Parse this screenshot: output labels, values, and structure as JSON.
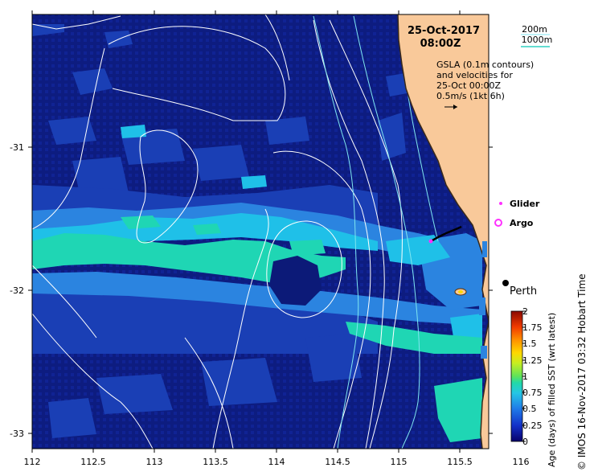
{
  "map": {
    "title_date": "25-Oct-2017",
    "title_time": "08:00Z",
    "bathymetry_legend": [
      "200m",
      "1000m"
    ],
    "gsla_note": [
      "GSLA (0.1m contours)",
      "and velocities for",
      "25-Oct 00:00Z",
      "0.5m/s (1kt 6h)"
    ],
    "legend_glider": "Glider",
    "legend_argo": "Argo",
    "place_label": "Perth",
    "x_ticks": [
      "112",
      "112.5",
      "113",
      "113.5",
      "114",
      "114.5",
      "115",
      "115.5",
      "116"
    ],
    "y_ticks": [
      "-31",
      "-32",
      "-33"
    ],
    "colorbar_ticks": [
      "2",
      "1.75",
      "1.5",
      "1.25",
      "1",
      "0.75",
      "0.5",
      "0.25",
      "0"
    ],
    "colorbar_label": "Age (days) of filled SST (wrt latest)",
    "credit": "© IMOS 16-Nov-2017 03:32 Hobart Time",
    "colors": {
      "ocean_deep": "#0c1a78",
      "ocean_mid": "#1a3fb5",
      "ocean_light": "#2b84e0",
      "cyan": "#1fc0e8",
      "teal": "#1fd6b4",
      "land": "#f9c99a",
      "glider": "#ff30ff",
      "argo": "#ff30ff"
    }
  }
}
